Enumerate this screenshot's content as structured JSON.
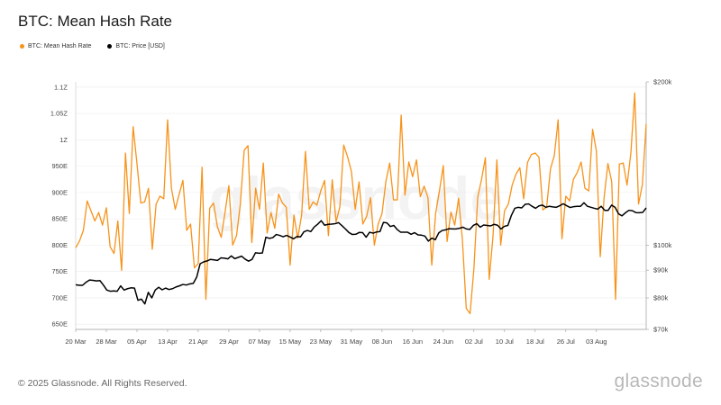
{
  "title": "BTC: Mean Hash Rate",
  "legend": [
    {
      "label": "BTC: Mean Hash Rate",
      "color": "#f7931a"
    },
    {
      "label": "BTC: Price [USD]",
      "color": "#000000"
    }
  ],
  "footer": "© 2025 Glassnode. All Rights Reserved.",
  "brand": "glassnode",
  "watermark": "glassnode",
  "chart_data": {
    "type": "line",
    "x_ticks": [
      "20 Mar",
      "28 Mar",
      "05 Apr",
      "13 Apr",
      "21 Apr",
      "29 Apr",
      "07 May",
      "15 May",
      "23 May",
      "31 May",
      "08 Jun",
      "16 Jun",
      "24 Jun",
      "02 Jul",
      "10 Jul",
      "18 Jul",
      "26 Jul",
      "03 Aug"
    ],
    "y_left_ticks": [
      "650E",
      "700E",
      "750E",
      "800E",
      "850E",
      "900E",
      "950E",
      "1Z",
      "1.05Z",
      "1.1Z"
    ],
    "y_left_range": [
      640,
      1110
    ],
    "y_left_unit": "E",
    "y_right_ticks": [
      "$70k",
      "$80k",
      "$90k",
      "$100k",
      "$200k"
    ],
    "y_right_tick_values": [
      70000,
      80000,
      90000,
      100000,
      200000
    ],
    "y_right_scale": "log",
    "y_right_range": [
      70000,
      200000
    ],
    "x_start": "2025-03-20",
    "series": [
      {
        "name": "BTC: Mean Hash Rate",
        "color": "#f7931a",
        "axis": "left",
        "values": [
          795,
          808,
          828,
          884,
          865,
          846,
          862,
          838,
          871,
          797,
          784,
          846,
          752,
          975,
          860,
          1025,
          955,
          880,
          882,
          908,
          792,
          878,
          893,
          888,
          1038,
          908,
          868,
          896,
          923,
          828,
          840,
          757,
          765,
          948,
          697,
          870,
          880,
          835,
          815,
          862,
          913,
          800,
          818,
          878,
          980,
          989,
          805,
          908,
          868,
          956,
          823,
          862,
          832,
          897,
          880,
          872,
          762,
          857,
          813,
          857,
          978,
          868,
          882,
          876,
          903,
          923,
          818,
          924,
          844,
          873,
          990,
          968,
          940,
          868,
          920,
          840,
          855,
          890,
          800,
          840,
          860,
          920,
          956,
          886,
          886,
          1047,
          895,
          958,
          930,
          962,
          892,
          912,
          890,
          762,
          860,
          903,
          951,
          807,
          863,
          838,
          889,
          810,
          680,
          670,
          755,
          891,
          925,
          966,
          735,
          818,
          962,
          800,
          865,
          878,
          914,
          935,
          947,
          888,
          957,
          972,
          975,
          967,
          867,
          872,
          945,
          970,
          1038,
          812,
          893,
          884,
          925,
          938,
          958,
          908,
          903,
          1020,
          978,
          778,
          890,
          955,
          920,
          697,
          954,
          956,
          914,
          975,
          1089,
          878,
          915,
          1030
        ]
      },
      {
        "name": "BTC: Price [USD]",
        "color": "#000000",
        "axis": "right",
        "values": [
          84600,
          84400,
          84400,
          85500,
          86300,
          86200,
          86000,
          86100,
          84500,
          82700,
          82300,
          82400,
          82300,
          84200,
          82700,
          83200,
          83500,
          83400,
          79200,
          79600,
          78000,
          81900,
          80000,
          82700,
          83700,
          82800,
          83400,
          82900,
          83200,
          83800,
          84200,
          84700,
          84500,
          84900,
          85100,
          87400,
          92500,
          93200,
          93600,
          94200,
          94000,
          93800,
          94800,
          94700,
          94400,
          95600,
          94500,
          95000,
          95500,
          94300,
          93500,
          94200,
          96900,
          96700,
          96800,
          103500,
          103000,
          103300,
          104700,
          104300,
          103700,
          104300,
          103600,
          102800,
          103800,
          103600,
          105900,
          106500,
          106000,
          108100,
          109400,
          111000,
          108900,
          109300,
          109400,
          109600,
          110100,
          108700,
          107200,
          105600,
          104700,
          104800,
          105600,
          105500,
          103500,
          105700,
          105300,
          105800,
          106000,
          110200,
          110000,
          108300,
          108800,
          106900,
          105700,
          105700,
          105700,
          104800,
          105500,
          104500,
          104400,
          104000,
          101800,
          103100,
          102400,
          105400,
          106500,
          106800,
          107300,
          107200,
          107200,
          107500,
          108000,
          107200,
          107000,
          108800,
          109600,
          108000,
          109000,
          108800,
          108600,
          109300,
          108900,
          107200,
          108400,
          108800,
          113500,
          117000,
          117500,
          117200,
          119000,
          119200,
          118000,
          117000,
          118200,
          118600,
          117500,
          118000,
          117700,
          117500,
          118300,
          119300,
          118300,
          117400,
          117800,
          118000,
          118000,
          119800,
          118000,
          117500,
          117000,
          116600,
          118000,
          116000,
          116000,
          118600,
          117500,
          114300,
          113300,
          114800,
          116000,
          115800,
          114900,
          114800,
          115000,
          117200
        ]
      }
    ]
  }
}
